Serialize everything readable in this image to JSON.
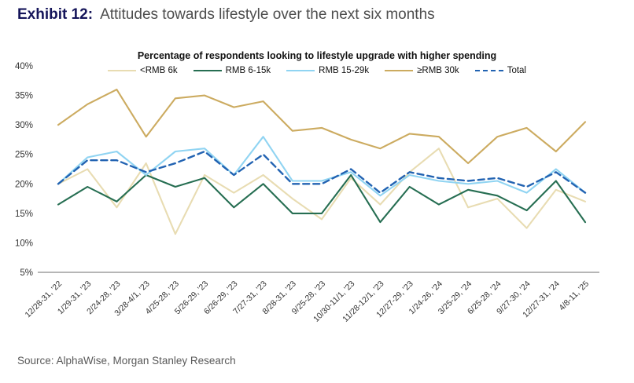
{
  "header": {
    "exhibit_label": "Exhibit 12:",
    "title": "Attitudes towards lifestyle over the next six months"
  },
  "source": "Source: AlphaWise, Morgan Stanley Research",
  "chart_data": {
    "type": "line",
    "title": "Percentage of respondents looking to lifestyle upgrade with higher spending",
    "xlabel": "",
    "ylabel": "",
    "ylim": [
      5,
      40
    ],
    "ytick_step": 5,
    "ytick_suffix": "%",
    "grid": false,
    "legend_position": "top",
    "categories": [
      "12/28-31, '22",
      "1/29-31, '23",
      "2/24-28, '23",
      "3/28-4/1, '23",
      "4/25-28, '23",
      "5/26-29, '23",
      "6/26-29, '23",
      "7/27-31, '23",
      "8/28-31, '23",
      "9/25-28, '23",
      "10/30-11/1, '23",
      "11/28-12/1, '23",
      "12/27-29, '23",
      "1/24-26, '24",
      "3/25-29, '24",
      "6/25-28, '24",
      "9/27-30, '24",
      "12/27-31, '24",
      "4/8-11, '25"
    ],
    "series": [
      {
        "name": "<RMB 6k",
        "color": "#e8dcb2",
        "dashed": false,
        "values": [
          20,
          22.5,
          16,
          23.5,
          11.5,
          21.5,
          18.5,
          21.5,
          17.5,
          14,
          21,
          16.5,
          22,
          26,
          16,
          17.5,
          12.5,
          19,
          17
        ]
      },
      {
        "name": "RMB 6-15k",
        "color": "#266e52",
        "dashed": false,
        "values": [
          16.5,
          19.5,
          17,
          21.5,
          19.5,
          21,
          16,
          20,
          15,
          15,
          21.5,
          13.5,
          19.5,
          16.5,
          19,
          18,
          15.5,
          20.5,
          13.5
        ]
      },
      {
        "name": "RMB 15-29k",
        "color": "#90d4f2",
        "dashed": false,
        "values": [
          20,
          24.5,
          25.5,
          21.5,
          25.5,
          26,
          21.5,
          28,
          20.5,
          20.5,
          22,
          18,
          21.5,
          20.5,
          20,
          20.5,
          18.5,
          22.5,
          18.5
        ]
      },
      {
        "name": "≥RMB 30k",
        "color": "#ccab60",
        "dashed": false,
        "values": [
          30,
          33.5,
          36,
          28,
          34.5,
          35,
          33,
          34,
          29,
          29.5,
          27.5,
          26,
          28.5,
          28,
          23.5,
          28,
          29.5,
          25.5,
          30.5
        ]
      },
      {
        "name": "Total",
        "color": "#2263b2",
        "dashed": true,
        "values": [
          20,
          24,
          24,
          22,
          23.5,
          25.5,
          21.5,
          25,
          20,
          20,
          22.5,
          18.5,
          22,
          21,
          20.5,
          21,
          19.5,
          22,
          18.5
        ]
      }
    ],
    "axis_color": "#9d9d9d",
    "tick_label_color": "#333333"
  }
}
